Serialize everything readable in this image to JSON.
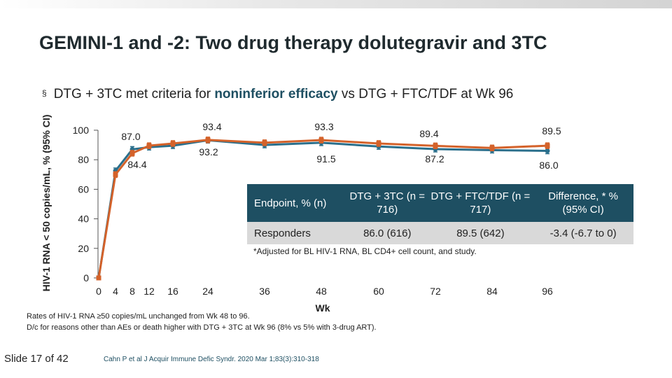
{
  "header": {
    "title": "GEMINI-1 and -2: Two drug therapy dolutegravir and 3TC",
    "bullet_marker": "§",
    "bullet_pre": "DTG + 3TC met criteria for ",
    "bullet_highlight": "noninferior efficacy",
    "bullet_post": " vs DTG + FTC/TDF at Wk 96"
  },
  "colors": {
    "dtg_3tc": "#2a6f8c",
    "dtg_ftc_tdf": "#d4622a",
    "table_header": "#1e4f62",
    "table_row": "#d9d9d9"
  },
  "chart_data": {
    "type": "line",
    "ylabel": "HIV-1 RNA < 50 copies/mL, % (95% CI)",
    "xlabel": "Wk",
    "x": [
      0,
      4,
      8,
      12,
      16,
      24,
      36,
      48,
      60,
      72,
      84,
      96
    ],
    "xticks": [
      "0",
      "4",
      "8",
      "12",
      "16",
      "24",
      "36",
      "48",
      "60",
      "72",
      "84",
      "96"
    ],
    "yticks": [
      "0",
      "20",
      "40",
      "60",
      "80",
      "100"
    ],
    "ylim": [
      0,
      100
    ],
    "series": [
      {
        "name": "DTG + 3TC",
        "values": [
          0,
          72.5,
          87.0,
          88.5,
          89.5,
          93.2,
          90.0,
          91.5,
          89.0,
          87.2,
          86.5,
          86.0
        ]
      },
      {
        "name": "DTG + FTC/TDF",
        "values": [
          0,
          70.0,
          84.4,
          89.5,
          91.0,
          93.4,
          91.5,
          93.3,
          91.0,
          89.4,
          88.0,
          89.5
        ]
      }
    ],
    "annotations": [
      {
        "text": "87.0",
        "x": 8
      },
      {
        "text": "84.4",
        "x": 8
      },
      {
        "text": "93.4",
        "x": 24
      },
      {
        "text": "93.2",
        "x": 24
      },
      {
        "text": "93.3",
        "x": 48
      },
      {
        "text": "91.5",
        "x": 48
      },
      {
        "text": "89.4",
        "x": 72
      },
      {
        "text": "87.2",
        "x": 72
      },
      {
        "text": "89.5",
        "x": 96
      },
      {
        "text": "86.0",
        "x": 96
      }
    ]
  },
  "table": {
    "headers": [
      "Endpoint, % (n)",
      "DTG + 3TC (n = 716)",
      "DTG + FTC/TDF (n = 717)",
      "Difference, * % (95% CI)"
    ],
    "row": [
      "Responders",
      "86.0 (616)",
      "89.5 (642)",
      "-3.4 (-6.7 to 0)"
    ],
    "footnote": "*Adjusted for BL HIV-1 RNA, BL CD4+ cell count, and study."
  },
  "notes": [
    "Rates of HIV-1 RNA ≥50 copies/mL unchanged from Wk 48 to 96.",
    "D/c for reasons other than AEs or death higher with DTG + 3TC at Wk 96 (8% vs 5% with 3-drug ART)."
  ],
  "footer": {
    "slide": "Slide 17 of 42",
    "citation": "Cahn P et al J Acquir Immune Defic Syndr. 2020 Mar 1;83(3):310-318"
  }
}
